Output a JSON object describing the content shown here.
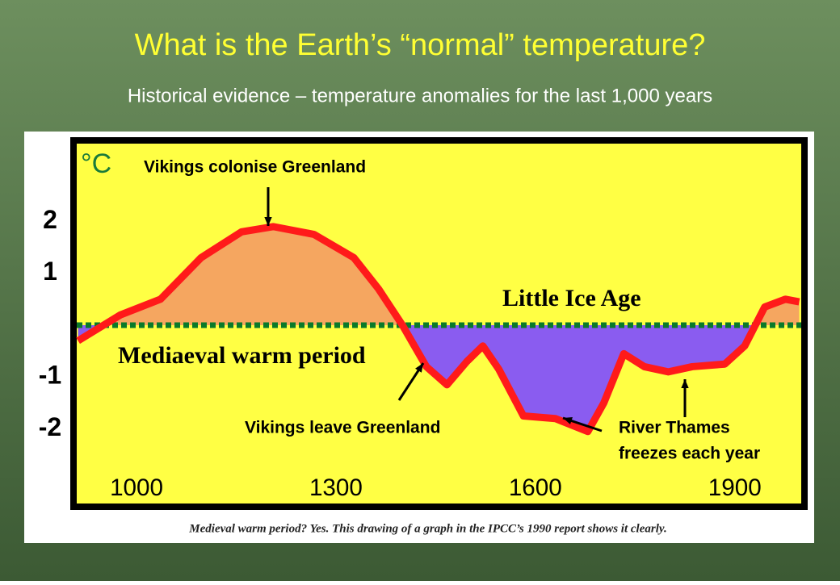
{
  "chart_data": {
    "type": "line",
    "title": "What is the Earth’s “normal” temperature?",
    "subtitle": "Historical evidence – temperature anomalies for the last 1,000 years",
    "y_label": "°C",
    "caption": "Medieval warm period? Yes. This drawing of a graph in the IPCC’s 1990 report shows it clearly.",
    "annotations": [
      "Vikings colonise Greenland",
      "Little Ice Age",
      "Mediaeval warm period",
      "Vikings leave Greenland",
      "River Thames",
      "freezes each year"
    ],
    "x": [
      912,
      976,
      1036,
      1097,
      1158,
      1206,
      1267,
      1327,
      1364,
      1400,
      1436,
      1467,
      1497,
      1521,
      1545,
      1582,
      1630,
      1679,
      1703,
      1733,
      1764,
      1800,
      1836,
      1885,
      1915,
      1945,
      1976,
      1997
    ],
    "values": [
      -0.3,
      0.2,
      0.5,
      1.3,
      1.8,
      1.9,
      1.75,
      1.3,
      0.7,
      0,
      -0.8,
      -1.15,
      -0.7,
      -0.4,
      -0.85,
      -1.75,
      -1.8,
      -2.05,
      -1.5,
      -0.55,
      -0.8,
      -0.9,
      -0.8,
      -0.75,
      -0.4,
      0.35,
      0.5,
      0.45
    ],
    "color": "#ff1a1a",
    "warm_color": "#f5a660",
    "cold_color": "#8a5cf0",
    "xlim": [
      910,
      2000
    ],
    "xticks": [
      1000,
      1300,
      1600,
      1900
    ],
    "ylim": [
      -3.5,
      3.5
    ],
    "yticks": [
      2,
      1,
      -1,
      -2
    ]
  }
}
